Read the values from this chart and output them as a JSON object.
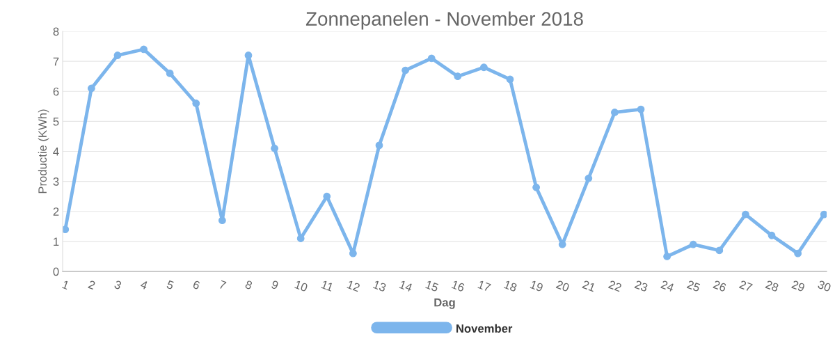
{
  "chart_data": {
    "type": "line",
    "title": "Zonnepanelen - November 2018",
    "xlabel": "Dag",
    "ylabel": "Productie (KWh)",
    "categories": [
      "1",
      "2",
      "3",
      "4",
      "5",
      "6",
      "7",
      "8",
      "9",
      "10",
      "11",
      "12",
      "13",
      "14",
      "15",
      "16",
      "17",
      "18",
      "19",
      "20",
      "21",
      "22",
      "23",
      "24",
      "25",
      "26",
      "27",
      "28",
      "29",
      "30"
    ],
    "series": [
      {
        "name": "November",
        "color": "#7cb5ec",
        "values": [
          1.4,
          6.1,
          7.2,
          7.4,
          6.6,
          5.6,
          1.7,
          7.2,
          4.1,
          1.1,
          2.5,
          0.6,
          4.2,
          6.7,
          7.1,
          6.5,
          6.8,
          6.4,
          2.8,
          0.9,
          3.1,
          5.3,
          5.4,
          0.5,
          0.9,
          0.7,
          1.9,
          1.2,
          0.6,
          1.9
        ]
      }
    ],
    "ylim": [
      0,
      8
    ],
    "yticks": [
      0,
      1,
      2,
      3,
      4,
      5,
      6,
      7,
      8
    ],
    "grid": "y",
    "legend": "bottom",
    "marker": "circle",
    "line_style": "solid"
  }
}
